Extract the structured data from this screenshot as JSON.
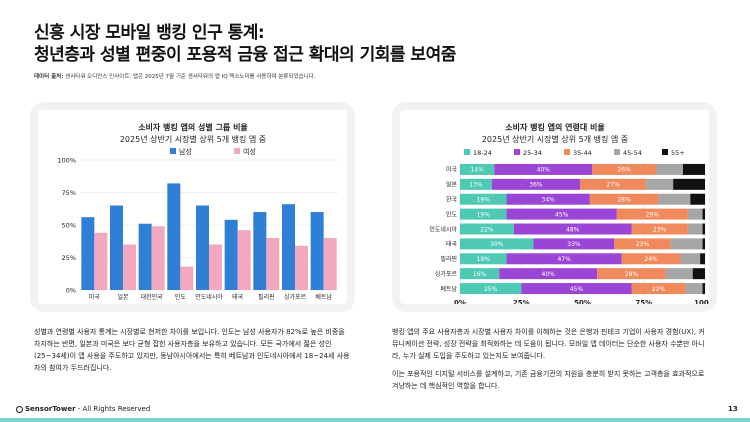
{
  "title": {
    "line1": "신흥 시장 모바일 뱅킹 인구 통계:",
    "line2": "청년층과 성별 편중이 포용적 금융 접근 확대의 기회를 보여줌"
  },
  "source": {
    "label": "데이터 출처:",
    "text": " 센서타워 오디언스 인사이트. 앱은 2025년 7월 기준 센서타워의 앱 IQ 텍소노미를 사용하여 분류되었습니다."
  },
  "footer": {
    "brand": "SensorTower",
    "rights": " - All Rights Reserved",
    "page": "13"
  },
  "paragraphs": {
    "left": [
      "성별과 연령별 사용자 통계는 시장별로 현저한 차이를 보입니다. 인도는 남성 사용자가 82%로 높은 비중을 차지하는 반면, 일본과 미국은 보다 균형 잡힌 사용자층을 보유하고 있습니다. 모든 국가에서 젊은 성인(25~34세)이 앱 사용을 주도하고 있지만, 동남아시아에서는 특히 베트남과 인도네시아에서 18~24세 사용자의 참여가 두드러집니다."
    ],
    "right": [
      "뱅킹 앱의 주요 사용자층과 시장별 사용자 차이를 이해하는 것은 은행과 핀테크 기업이 사용자 경험(UX), 커뮤니케이션 전략, 성장 전략을 최적화하는 데 도움이 됩니다. 모바일 앱 데이터는 단순한 사용자 수뿐만 아니라, 누가 실제 도입을 주도하고 있는지도 보여줍니다.",
      "이는 포용적인 디지털 서비스를 설계하고, 기존 금융기관의 지원을 충분히 받지 못하는 고객층을 효과적으로 겨냥하는 데 핵심적인 역할을 합니다."
    ]
  },
  "colors": {
    "male": "#2f7fd6",
    "female": "#f2a9c0",
    "age_18_24": "#4ec9b4",
    "age_25_34": "#9b45d6",
    "age_35_44": "#f08a5d",
    "age_45_54": "#a6a6a6",
    "age_55_plus": "#111111"
  },
  "chart_data": [
    {
      "type": "bar",
      "title": "소비자 뱅킹 앱의 성별 그룹 비율",
      "subtitle": "2025년 상반기 시장별 상위 5개 뱅킹 앱 중",
      "categories": [
        "미국",
        "일본",
        "대한민국",
        "인도",
        "인도네시아",
        "태국",
        "필리핀",
        "싱가포르",
        "베트남"
      ],
      "series": [
        {
          "name": "남성",
          "values": [
            56,
            65,
            51,
            82,
            65,
            54,
            60,
            66,
            60
          ]
        },
        {
          "name": "여성",
          "values": [
            44,
            35,
            49,
            18,
            35,
            46,
            40,
            34,
            40
          ]
        }
      ],
      "yticks": [
        "0%",
        "25%",
        "50%",
        "75%",
        "100%"
      ],
      "ylim": [
        0,
        100
      ],
      "legend": "top",
      "grid": true
    },
    {
      "type": "bar",
      "orientation": "horizontal-stacked",
      "title": "소비자 뱅킹 앱의 연령대 비율",
      "subtitle": "2025년 상반기 시장별 상위 5개 뱅킹 앱 중",
      "categories": [
        "미국",
        "일본",
        "한국",
        "인도",
        "인도네시아",
        "태국",
        "필리핀",
        "싱가포르",
        "베트남"
      ],
      "series": [
        {
          "name": "18-24",
          "values": [
            14,
            13,
            19,
            19,
            22,
            30,
            19,
            16,
            25
          ]
        },
        {
          "name": "25-34",
          "values": [
            40,
            36,
            34,
            45,
            48,
            33,
            47,
            40,
            45
          ]
        },
        {
          "name": "35-44",
          "values": [
            26,
            27,
            28,
            29,
            23,
            23,
            24,
            28,
            22
          ]
        },
        {
          "name": "45-54",
          "values": [
            11,
            11,
            13,
            6,
            6,
            13,
            8,
            11,
            7
          ]
        },
        {
          "name": "55+",
          "values": [
            9,
            13,
            6,
            1,
            1,
            1,
            2,
            5,
            1
          ]
        }
      ],
      "xticks": [
        "0%",
        "25%",
        "50%",
        "75%",
        "100%"
      ],
      "xlim": [
        0,
        100
      ],
      "legend": "top",
      "grid": true
    }
  ]
}
